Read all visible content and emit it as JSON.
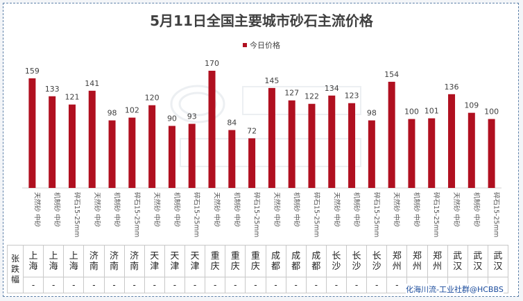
{
  "chart_data": {
    "type": "bar",
    "title": "5月11日全国主要城市砂石主流价格",
    "legend": "今日价格",
    "legend_position": "top-center",
    "categories": [
      "天然砂 中砂",
      "机制砂 中砂",
      "碎石15-25mm",
      "天然砂 中砂",
      "机制砂 中砂",
      "碎石15-25mm",
      "天然砂 中砂",
      "机制砂 中砂",
      "碎石15-25mm",
      "天然砂 中砂",
      "机制砂 中砂",
      "碎石15-25mm",
      "天然砂 中砂",
      "机制砂 中砂",
      "碎石15-25mm",
      "天然砂 中砂",
      "机制砂 中砂",
      "碎石15-25mm",
      "天然砂 中砂",
      "机制砂 中砂",
      "碎石15-25mm",
      "天然砂 中砂",
      "机制砂 中砂",
      "碎石15-25mm"
    ],
    "values": [
      159,
      133,
      121,
      141,
      98,
      102,
      120,
      90,
      93,
      170,
      84,
      72,
      145,
      127,
      122,
      134,
      123,
      98,
      154,
      100,
      101,
      136,
      109,
      100
    ],
    "ylim": [
      0,
      175
    ],
    "grid": false,
    "bar_color": "#b01020"
  },
  "table": {
    "row_headers": [
      "张跌幅"
    ],
    "cities": [
      "上海",
      "上海",
      "上海",
      "济南",
      "济南",
      "济南",
      "天津",
      "天津",
      "天津",
      "重庆",
      "重庆",
      "重庆",
      "成都",
      "成都",
      "成都",
      "长沙",
      "长沙",
      "长沙",
      "郑州",
      "郑州",
      "郑州",
      "武汉",
      "武汉",
      "武汉"
    ],
    "changes": [
      "-",
      "-",
      "-",
      "-",
      "-",
      "-",
      "-",
      "-",
      "-",
      "-",
      "-",
      "-",
      "-",
      "-",
      "-",
      "-",
      "-",
      "-",
      "-",
      "-",
      "-",
      "-",
      "-",
      "-"
    ]
  },
  "credit": "化海川流-工业社群@HCBBS"
}
